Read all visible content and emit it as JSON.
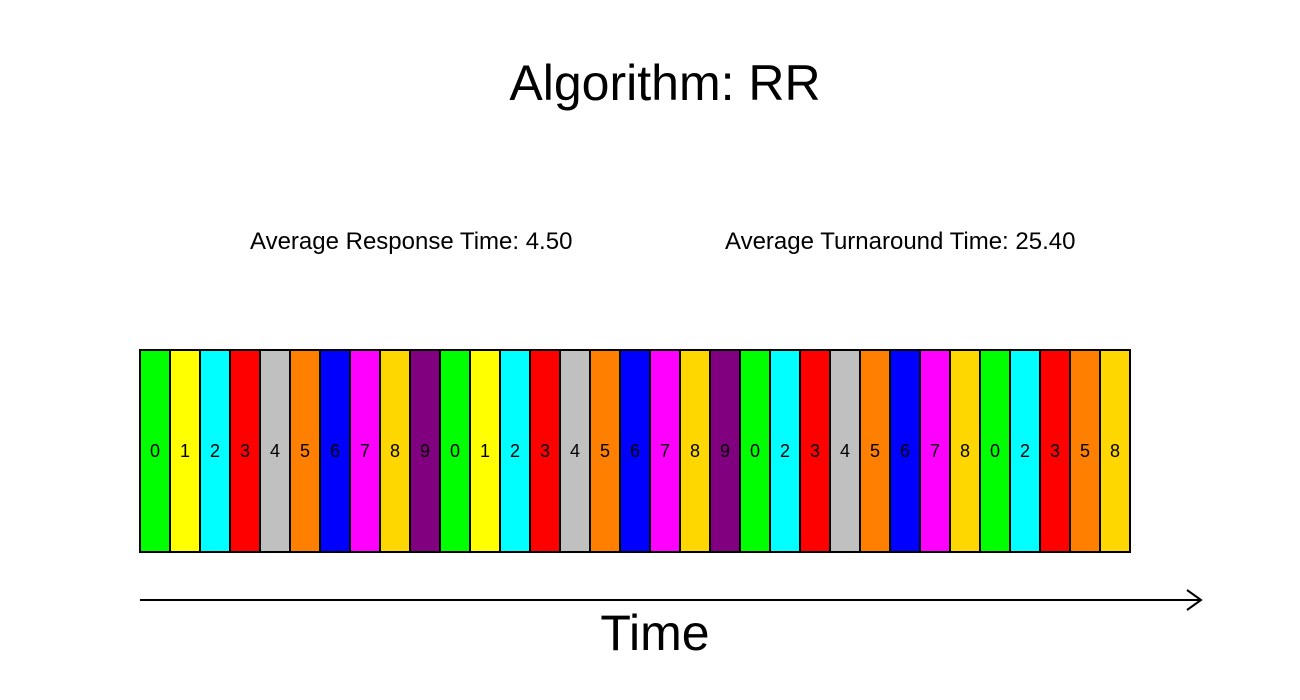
{
  "title": "Algorithm: RR",
  "metrics": {
    "response": "Average Response Time: 4.50",
    "turnaround": "Average Turnaround Time: 25.40"
  },
  "axis": {
    "label": "Time"
  },
  "process_colors": {
    "0": "#00ff00",
    "1": "#ffff00",
    "2": "#00ffff",
    "3": "#ff0000",
    "4": "#c0c0c0",
    "5": "#ff8000",
    "6": "#0000ff",
    "7": "#ff00ff",
    "8": "#ffd700",
    "9": "#800080"
  },
  "timeline": [
    "0",
    "1",
    "2",
    "3",
    "4",
    "5",
    "6",
    "7",
    "8",
    "9",
    "0",
    "1",
    "2",
    "3",
    "4",
    "5",
    "6",
    "7",
    "8",
    "9",
    "0",
    "2",
    "3",
    "4",
    "5",
    "6",
    "7",
    "8",
    "0",
    "2",
    "3",
    "5",
    "8"
  ]
}
